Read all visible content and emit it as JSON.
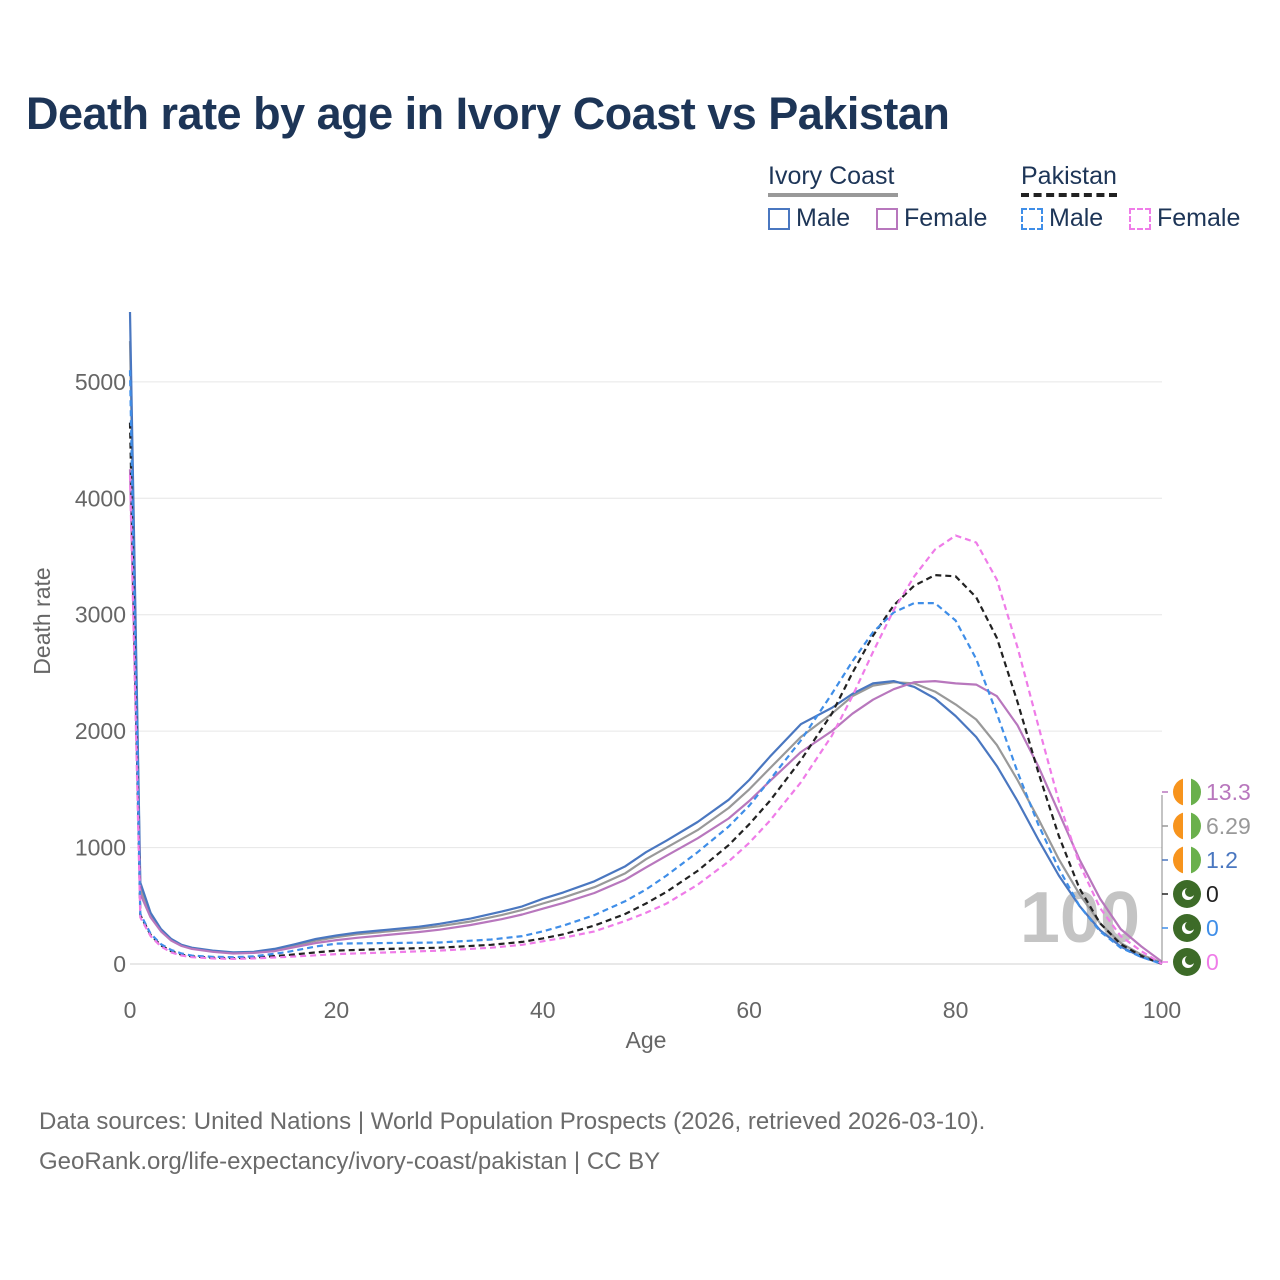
{
  "title": "Death rate by age in Ivory Coast vs Pakistan",
  "legend": {
    "groups": [
      {
        "name": "Ivory Coast",
        "line_color": "#999999",
        "underline_style": "solid",
        "items": [
          {
            "label": "Male",
            "color": "#4a77c0",
            "style": "solid"
          },
          {
            "label": "Female",
            "color": "#b877bd",
            "style": "solid"
          }
        ]
      },
      {
        "name": "Pakistan",
        "line_color": "#222222",
        "underline_style": "dashed",
        "items": [
          {
            "label": "Male",
            "color": "#3f8ee8",
            "style": "dashed"
          },
          {
            "label": "Female",
            "color": "#ef7ce8",
            "style": "dashed"
          }
        ]
      }
    ]
  },
  "footer": {
    "source": "Data sources: United Nations | World Population Prospects (2026, retrieved 2026-03-10).",
    "credit": "GeoRank.org/life-expectancy/ivory-coast/pakistan | CC BY"
  },
  "chart_data": {
    "type": "line",
    "title": "Death rate by age in Ivory Coast vs Pakistan",
    "xlabel": "Age",
    "ylabel": "Death rate",
    "xlim": [
      0,
      100
    ],
    "ylim": [
      0,
      5600
    ],
    "xticks": [
      0,
      20,
      40,
      60,
      80,
      100
    ],
    "yticks": [
      0,
      1000,
      2000,
      3000,
      4000,
      5000
    ],
    "grid": "horizontal",
    "watermark": "100",
    "series": [
      {
        "name": "Ivory Coast – Total",
        "color": "#999999",
        "style": "solid",
        "points": [
          [
            0,
            5350
          ],
          [
            1,
            650
          ],
          [
            2,
            420
          ],
          [
            3,
            290
          ],
          [
            4,
            210
          ],
          [
            5,
            160
          ],
          [
            6,
            135
          ],
          [
            8,
            110
          ],
          [
            10,
            95
          ],
          [
            12,
            100
          ],
          [
            14,
            120
          ],
          [
            16,
            160
          ],
          [
            18,
            200
          ],
          [
            20,
            230
          ],
          [
            22,
            255
          ],
          [
            25,
            280
          ],
          [
            28,
            305
          ],
          [
            30,
            325
          ],
          [
            33,
            365
          ],
          [
            36,
            420
          ],
          [
            38,
            465
          ],
          [
            40,
            520
          ],
          [
            42,
            570
          ],
          [
            45,
            660
          ],
          [
            48,
            780
          ],
          [
            50,
            900
          ],
          [
            52,
            1000
          ],
          [
            55,
            1150
          ],
          [
            58,
            1340
          ],
          [
            60,
            1500
          ],
          [
            62,
            1680
          ],
          [
            65,
            1950
          ],
          [
            68,
            2150
          ],
          [
            70,
            2300
          ],
          [
            72,
            2390
          ],
          [
            74,
            2420
          ],
          [
            76,
            2410
          ],
          [
            78,
            2340
          ],
          [
            80,
            2230
          ],
          [
            82,
            2100
          ],
          [
            84,
            1880
          ],
          [
            86,
            1580
          ],
          [
            88,
            1250
          ],
          [
            90,
            900
          ],
          [
            92,
            600
          ],
          [
            94,
            350
          ],
          [
            96,
            180
          ],
          [
            98,
            80
          ],
          [
            100,
            10
          ]
        ],
        "end_label": "6.29",
        "flag": "Ivory Coast"
      },
      {
        "name": "Ivory Coast – Male",
        "color": "#4a77c0",
        "style": "solid",
        "points": [
          [
            0,
            5600
          ],
          [
            1,
            700
          ],
          [
            2,
            440
          ],
          [
            3,
            300
          ],
          [
            4,
            215
          ],
          [
            5,
            165
          ],
          [
            6,
            140
          ],
          [
            8,
            115
          ],
          [
            10,
            100
          ],
          [
            12,
            105
          ],
          [
            14,
            130
          ],
          [
            16,
            170
          ],
          [
            18,
            215
          ],
          [
            20,
            245
          ],
          [
            22,
            270
          ],
          [
            25,
            295
          ],
          [
            28,
            320
          ],
          [
            30,
            345
          ],
          [
            33,
            390
          ],
          [
            36,
            450
          ],
          [
            38,
            495
          ],
          [
            40,
            560
          ],
          [
            42,
            615
          ],
          [
            45,
            710
          ],
          [
            48,
            840
          ],
          [
            50,
            960
          ],
          [
            52,
            1060
          ],
          [
            55,
            1220
          ],
          [
            58,
            1410
          ],
          [
            60,
            1580
          ],
          [
            62,
            1780
          ],
          [
            65,
            2060
          ],
          [
            68,
            2200
          ],
          [
            70,
            2320
          ],
          [
            72,
            2410
          ],
          [
            74,
            2430
          ],
          [
            76,
            2380
          ],
          [
            78,
            2280
          ],
          [
            80,
            2130
          ],
          [
            82,
            1950
          ],
          [
            84,
            1700
          ],
          [
            86,
            1400
          ],
          [
            88,
            1070
          ],
          [
            90,
            760
          ],
          [
            92,
            500
          ],
          [
            94,
            290
          ],
          [
            96,
            150
          ],
          [
            98,
            60
          ],
          [
            100,
            5
          ]
        ],
        "end_label": "1.2",
        "flag": "Ivory Coast"
      },
      {
        "name": "Ivory Coast – Female",
        "color": "#b877bd",
        "style": "solid",
        "points": [
          [
            0,
            4250
          ],
          [
            1,
            600
          ],
          [
            2,
            400
          ],
          [
            3,
            280
          ],
          [
            4,
            200
          ],
          [
            5,
            155
          ],
          [
            6,
            130
          ],
          [
            8,
            105
          ],
          [
            10,
            90
          ],
          [
            12,
            95
          ],
          [
            14,
            110
          ],
          [
            16,
            145
          ],
          [
            18,
            180
          ],
          [
            20,
            205
          ],
          [
            22,
            225
          ],
          [
            25,
            250
          ],
          [
            28,
            275
          ],
          [
            30,
            295
          ],
          [
            33,
            335
          ],
          [
            36,
            385
          ],
          [
            38,
            425
          ],
          [
            40,
            475
          ],
          [
            42,
            525
          ],
          [
            45,
            610
          ],
          [
            48,
            725
          ],
          [
            50,
            830
          ],
          [
            52,
            930
          ],
          [
            55,
            1080
          ],
          [
            58,
            1250
          ],
          [
            60,
            1400
          ],
          [
            62,
            1570
          ],
          [
            65,
            1820
          ],
          [
            68,
            2000
          ],
          [
            70,
            2150
          ],
          [
            72,
            2270
          ],
          [
            74,
            2360
          ],
          [
            76,
            2420
          ],
          [
            78,
            2430
          ],
          [
            80,
            2410
          ],
          [
            82,
            2400
          ],
          [
            84,
            2300
          ],
          [
            86,
            2050
          ],
          [
            88,
            1700
          ],
          [
            90,
            1300
          ],
          [
            92,
            900
          ],
          [
            94,
            560
          ],
          [
            96,
            300
          ],
          [
            98,
            150
          ],
          [
            100,
            20
          ]
        ],
        "end_label": "13.3",
        "flag": "Ivory Coast"
      },
      {
        "name": "Pakistan – Total",
        "color": "#222222",
        "style": "dashed",
        "points": [
          [
            0,
            4650
          ],
          [
            1,
            420
          ],
          [
            2,
            250
          ],
          [
            3,
            160
          ],
          [
            4,
            110
          ],
          [
            5,
            80
          ],
          [
            6,
            65
          ],
          [
            8,
            55
          ],
          [
            10,
            50
          ],
          [
            12,
            55
          ],
          [
            15,
            75
          ],
          [
            18,
            100
          ],
          [
            20,
            115
          ],
          [
            25,
            130
          ],
          [
            30,
            140
          ],
          [
            35,
            165
          ],
          [
            38,
            190
          ],
          [
            40,
            220
          ],
          [
            42,
            255
          ],
          [
            45,
            330
          ],
          [
            48,
            430
          ],
          [
            50,
            520
          ],
          [
            52,
            620
          ],
          [
            55,
            800
          ],
          [
            58,
            1020
          ],
          [
            60,
            1200
          ],
          [
            62,
            1400
          ],
          [
            65,
            1750
          ],
          [
            68,
            2150
          ],
          [
            70,
            2500
          ],
          [
            72,
            2820
          ],
          [
            74,
            3080
          ],
          [
            76,
            3250
          ],
          [
            78,
            3340
          ],
          [
            80,
            3330
          ],
          [
            82,
            3150
          ],
          [
            84,
            2800
          ],
          [
            86,
            2250
          ],
          [
            88,
            1650
          ],
          [
            90,
            1100
          ],
          [
            92,
            650
          ],
          [
            94,
            350
          ],
          [
            96,
            170
          ],
          [
            98,
            70
          ],
          [
            100,
            0
          ]
        ],
        "end_label": "0",
        "flag": "Pakistan"
      },
      {
        "name": "Pakistan – Male",
        "color": "#3f8ee8",
        "style": "dashed",
        "points": [
          [
            0,
            5100
          ],
          [
            1,
            430
          ],
          [
            2,
            260
          ],
          [
            3,
            170
          ],
          [
            4,
            120
          ],
          [
            5,
            90
          ],
          [
            6,
            72
          ],
          [
            8,
            62
          ],
          [
            10,
            58
          ],
          [
            12,
            65
          ],
          [
            15,
            100
          ],
          [
            18,
            150
          ],
          [
            20,
            175
          ],
          [
            25,
            180
          ],
          [
            30,
            185
          ],
          [
            35,
            210
          ],
          [
            38,
            240
          ],
          [
            40,
            280
          ],
          [
            42,
            330
          ],
          [
            45,
            420
          ],
          [
            48,
            540
          ],
          [
            50,
            640
          ],
          [
            52,
            760
          ],
          [
            55,
            960
          ],
          [
            58,
            1180
          ],
          [
            60,
            1360
          ],
          [
            62,
            1580
          ],
          [
            65,
            1920
          ],
          [
            68,
            2320
          ],
          [
            70,
            2600
          ],
          [
            72,
            2850
          ],
          [
            74,
            3020
          ],
          [
            76,
            3100
          ],
          [
            78,
            3100
          ],
          [
            80,
            2950
          ],
          [
            82,
            2620
          ],
          [
            84,
            2150
          ],
          [
            86,
            1650
          ],
          [
            88,
            1200
          ],
          [
            90,
            820
          ],
          [
            92,
            500
          ],
          [
            94,
            280
          ],
          [
            96,
            140
          ],
          [
            98,
            60
          ],
          [
            100,
            0
          ]
        ],
        "end_label": "0",
        "flag": "Pakistan"
      },
      {
        "name": "Pakistan – Female",
        "color": "#ef7ce8",
        "style": "dashed",
        "points": [
          [
            0,
            4200
          ],
          [
            1,
            400
          ],
          [
            2,
            240
          ],
          [
            3,
            150
          ],
          [
            4,
            100
          ],
          [
            5,
            72
          ],
          [
            6,
            58
          ],
          [
            8,
            48
          ],
          [
            10,
            44
          ],
          [
            12,
            48
          ],
          [
            15,
            60
          ],
          [
            18,
            75
          ],
          [
            20,
            85
          ],
          [
            25,
            100
          ],
          [
            30,
            115
          ],
          [
            35,
            140
          ],
          [
            38,
            165
          ],
          [
            40,
            195
          ],
          [
            42,
            225
          ],
          [
            45,
            280
          ],
          [
            48,
            370
          ],
          [
            50,
            440
          ],
          [
            52,
            520
          ],
          [
            55,
            680
          ],
          [
            58,
            880
          ],
          [
            60,
            1040
          ],
          [
            62,
            1230
          ],
          [
            65,
            1560
          ],
          [
            68,
            1960
          ],
          [
            70,
            2300
          ],
          [
            72,
            2680
          ],
          [
            74,
            3040
          ],
          [
            76,
            3330
          ],
          [
            78,
            3560
          ],
          [
            80,
            3680
          ],
          [
            82,
            3620
          ],
          [
            84,
            3300
          ],
          [
            86,
            2720
          ],
          [
            88,
            2050
          ],
          [
            90,
            1400
          ],
          [
            92,
            860
          ],
          [
            94,
            480
          ],
          [
            96,
            240
          ],
          [
            98,
            110
          ],
          [
            100,
            0
          ]
        ],
        "end_label": "0",
        "flag": "Pakistan"
      }
    ],
    "end_label_order": [
      "Ivory Coast – Female",
      "Ivory Coast – Total",
      "Ivory Coast – Male",
      "Pakistan – Total",
      "Pakistan – Male",
      "Pakistan – Female"
    ]
  }
}
